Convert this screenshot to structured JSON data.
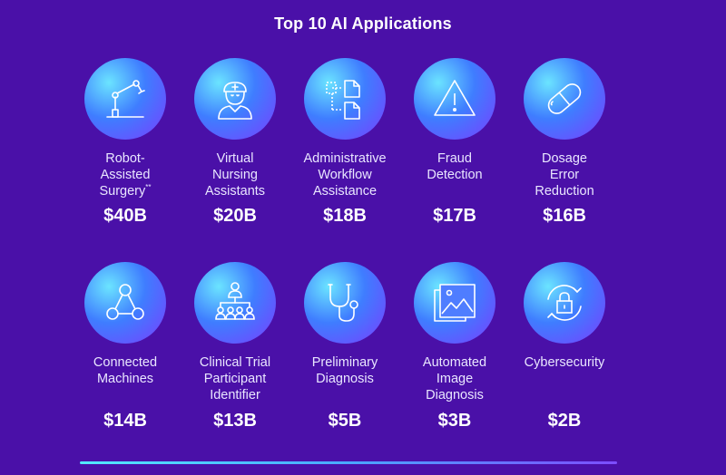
{
  "title": "Top 10 AI Applications",
  "apps": [
    {
      "label": "Robot-\nAssisted\nSurgery",
      "footnote": "**",
      "value": "$40B",
      "icon": "robot-arm-icon"
    },
    {
      "label": "Virtual\nNursing\nAssistants",
      "value": "$20B",
      "icon": "nurse-icon"
    },
    {
      "label": "Administrative\nWorkflow\nAssistance",
      "value": "$18B",
      "icon": "workflow-documents-icon"
    },
    {
      "label": "Fraud\nDetection",
      "value": "$17B",
      "icon": "warning-triangle-icon"
    },
    {
      "label": "Dosage\nError\nReduction",
      "value": "$16B",
      "icon": "pill-icon"
    },
    {
      "label": "Connected\nMachines",
      "value": "$14B",
      "icon": "network-nodes-icon"
    },
    {
      "label": "Clinical Trial\nParticipant\nIdentifier",
      "value": "$13B",
      "icon": "people-hierarchy-icon"
    },
    {
      "label": "Preliminary\nDiagnosis",
      "value": "$5B",
      "icon": "stethoscope-icon"
    },
    {
      "label": "Automated\nImage\nDiagnosis",
      "value": "$3B",
      "icon": "image-stack-icon"
    },
    {
      "label": "Cybersecurity",
      "value": "$2B",
      "icon": "lock-cycle-icon"
    }
  ]
}
